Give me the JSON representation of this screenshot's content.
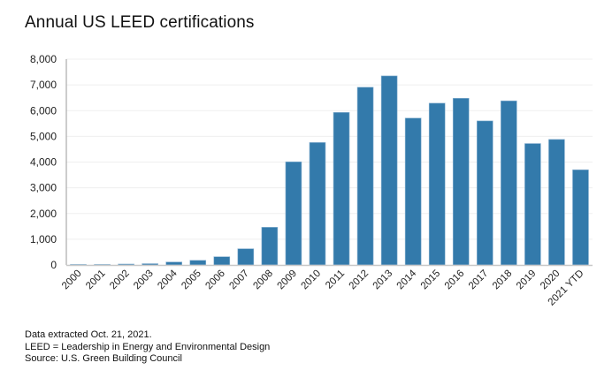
{
  "chart_data": {
    "type": "bar",
    "title": "Annual US LEED certifications",
    "xlabel": "",
    "ylabel": "",
    "categories": [
      "2000",
      "2001",
      "2002",
      "2003",
      "2004",
      "2005",
      "2006",
      "2007",
      "2008",
      "2009",
      "2010",
      "2011",
      "2012",
      "2013",
      "2014",
      "2015",
      "2016",
      "2017",
      "2018",
      "2019",
      "2020",
      "2021 YTD"
    ],
    "values": [
      3,
      12,
      35,
      50,
      115,
      180,
      320,
      630,
      1465,
      4010,
      4760,
      5930,
      6910,
      7350,
      5710,
      6290,
      6480,
      5600,
      6380,
      4720,
      4880,
      3700
    ],
    "ylim": [
      0,
      8000
    ],
    "yticks": [
      0,
      1000,
      2000,
      3000,
      4000,
      5000,
      6000,
      7000,
      8000
    ],
    "ytick_labels": [
      "0",
      "1,000",
      "2,000",
      "3,000",
      "4,000",
      "5,000",
      "6,000",
      "7,000",
      "8,000"
    ],
    "grid": true,
    "legend": "none",
    "bar_color": "#337aab",
    "x_tick_rotation": "-45deg"
  },
  "footnotes": [
    "Data extracted Oct. 21, 2021.",
    "LEED = Leadership in Energy and Environmental Design",
    "Source: U.S. Green Building Council"
  ]
}
